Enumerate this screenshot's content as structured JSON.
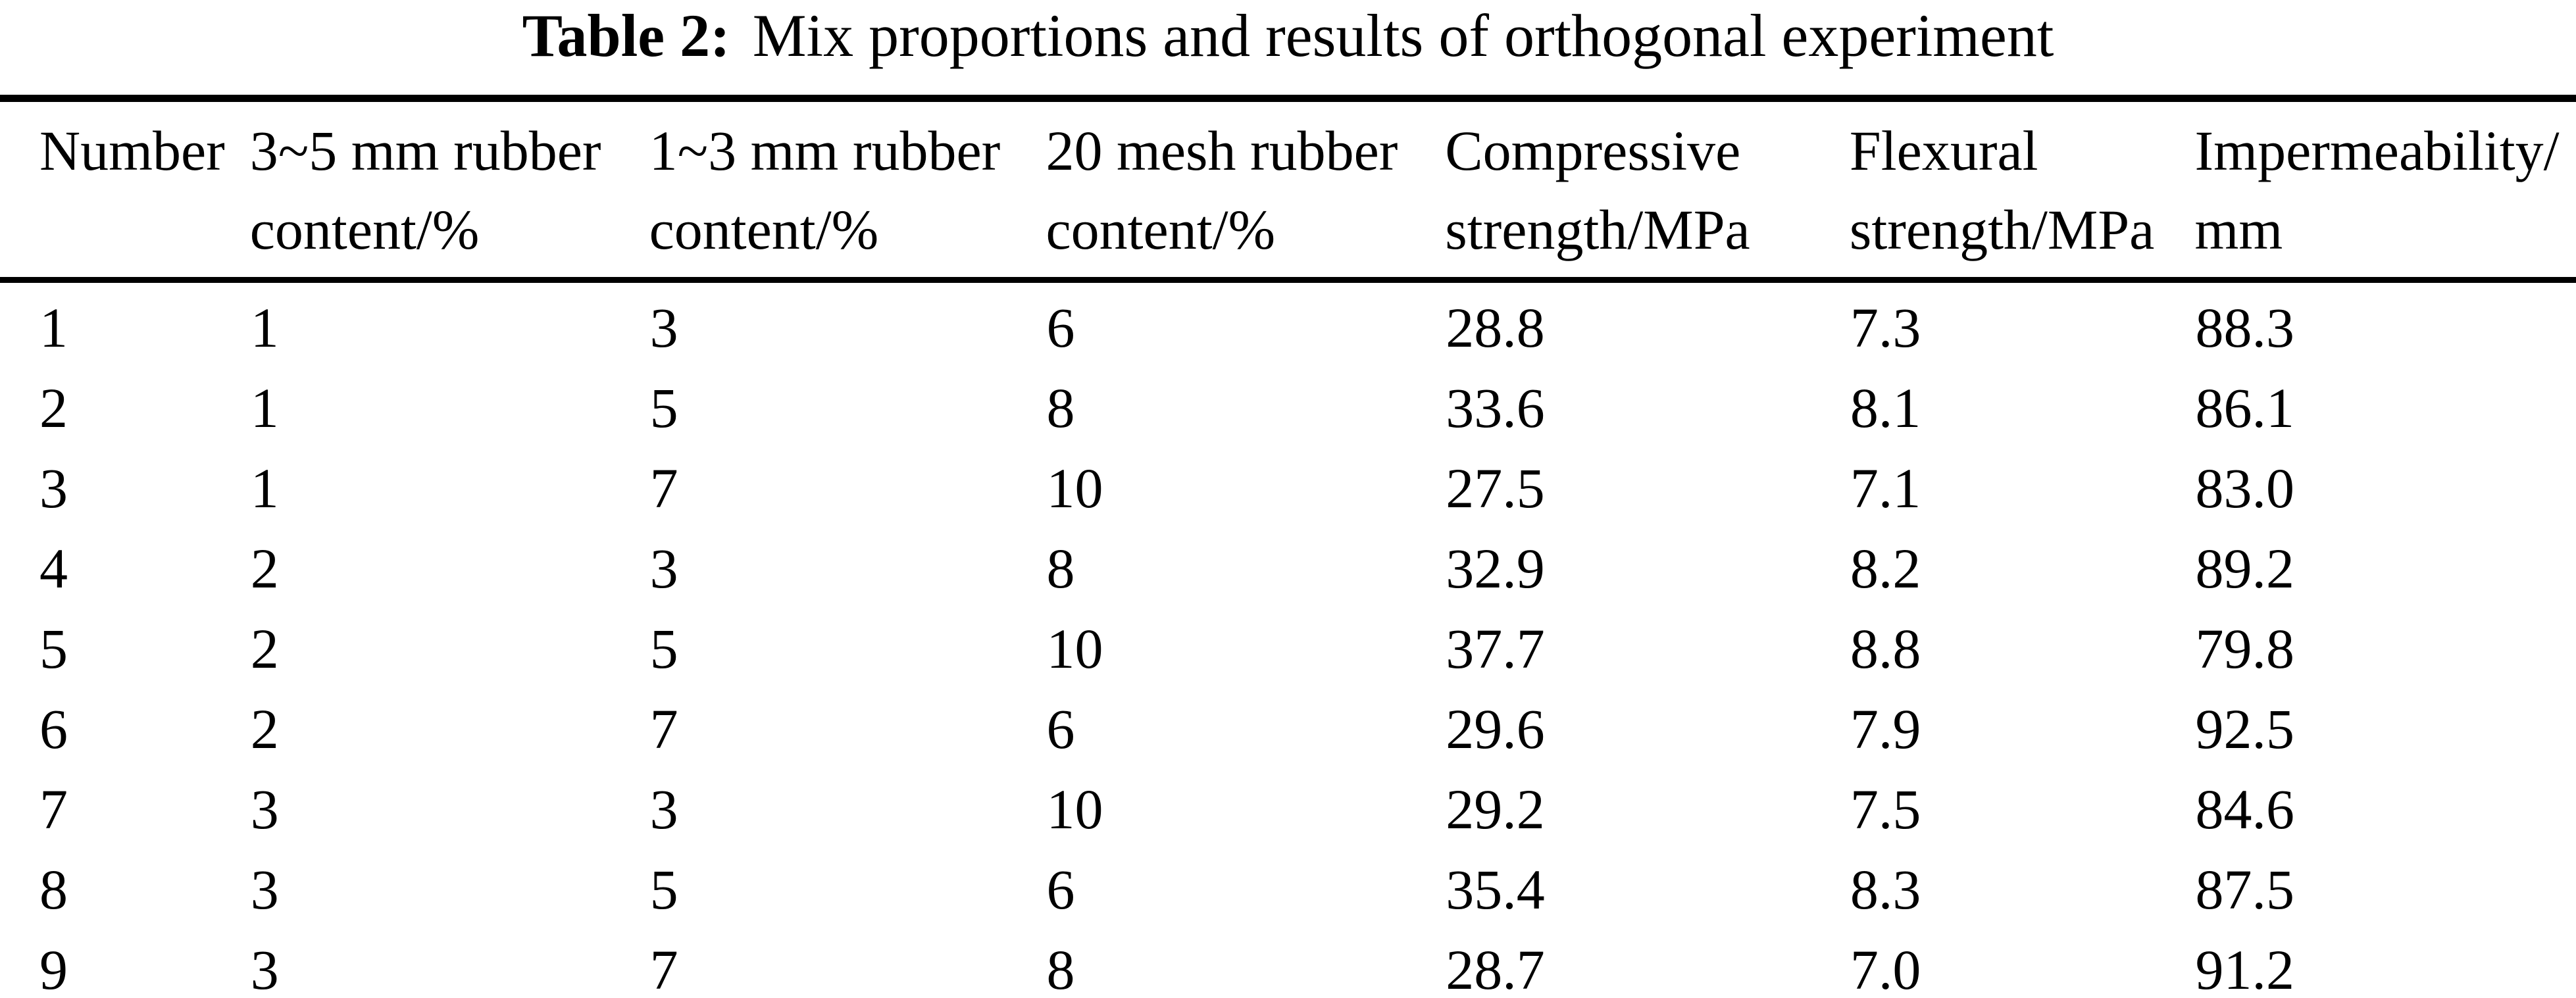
{
  "title": {
    "label": "Table 2:",
    "text": "Mix proportions and results of orthogonal experiment"
  },
  "colors": {
    "background": "#ffffff",
    "text": "#000000",
    "rule": "#000000"
  },
  "table": {
    "headers": [
      {
        "line1": "Number",
        "line2": ""
      },
      {
        "line1": "3~5 mm rubber",
        "line2": "content/%"
      },
      {
        "line1": "1~3 mm rubber",
        "line2": "content/%"
      },
      {
        "line1": "20 mesh rubber",
        "line2": "content/%"
      },
      {
        "line1": "Compressive",
        "line2": "strength/MPa"
      },
      {
        "line1": "Flexural",
        "line2": "strength/MPa"
      },
      {
        "line1": "Impermeability/",
        "line2": "mm"
      }
    ],
    "rows": [
      [
        "1",
        "1",
        "3",
        "6",
        "28.8",
        "7.3",
        "88.3"
      ],
      [
        "2",
        "1",
        "5",
        "8",
        "33.6",
        "8.1",
        "86.1"
      ],
      [
        "3",
        "1",
        "7",
        "10",
        "27.5",
        "7.1",
        "83.0"
      ],
      [
        "4",
        "2",
        "3",
        "8",
        "32.9",
        "8.2",
        "89.2"
      ],
      [
        "5",
        "2",
        "5",
        "10",
        "37.7",
        "8.8",
        "79.8"
      ],
      [
        "6",
        "2",
        "7",
        "6",
        "29.6",
        "7.9",
        "92.5"
      ],
      [
        "7",
        "3",
        "3",
        "10",
        "29.2",
        "7.5",
        "84.6"
      ],
      [
        "8",
        "3",
        "5",
        "6",
        "35.4",
        "8.3",
        "87.5"
      ],
      [
        "9",
        "3",
        "7",
        "8",
        "28.7",
        "7.0",
        "91.2"
      ]
    ]
  }
}
